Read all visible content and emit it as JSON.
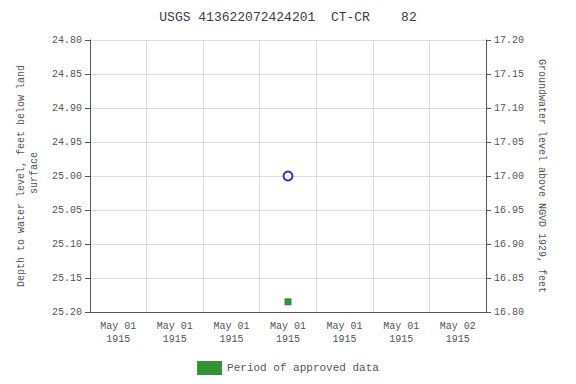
{
  "chart_data": {
    "type": "scatter",
    "title": "USGS 413622072424201  CT-CR    82",
    "y_label": "Depth to water level, feet below land\n surface",
    "y2_label": "Groundwater level above NGVD 1929, feet",
    "categories": [
      "May 01\n1915",
      "May 01\n1915",
      "May 01\n1915",
      "May 01\n1915",
      "May 01\n1915",
      "May 01\n1915",
      "May 02\n1915"
    ],
    "series": [
      {
        "values": [
          null,
          null,
          null,
          25.0,
          null,
          null,
          null
        ],
        "color": "#0000cc",
        "marker": "circle_open"
      },
      {
        "name": "Period of approved data",
        "values": [
          null,
          null,
          null,
          25.185,
          null,
          null,
          null
        ],
        "color": "#007700",
        "marker": "square"
      }
    ],
    "ylim": [
      24.8,
      25.2
    ],
    "yticks": [
      {
        "value": 24.8,
        "label": "24.80"
      },
      24.85,
      {
        "value": 24.9,
        "label": "24.90"
      },
      24.95,
      {
        "value": 25.0,
        "label": "25.00"
      },
      25.05,
      {
        "value": 25.1,
        "label": "25.10"
      },
      25.15,
      {
        "value": 25.2,
        "label": "25.20"
      }
    ],
    "y_inverted": true,
    "y2lim": [
      16.8,
      17.2
    ],
    "y2ticks": [
      {
        "value": 17.2,
        "label": "17.20"
      },
      17.15,
      {
        "value": 17.1,
        "label": "17.10"
      },
      17.05,
      {
        "value": 17.0,
        "label": "17.00"
      },
      16.95,
      {
        "value": 16.9,
        "label": "16.90"
      },
      16.85,
      {
        "value": 16.8,
        "label": "16.80"
      }
    ],
    "grid": true,
    "legend": "bottom"
  }
}
